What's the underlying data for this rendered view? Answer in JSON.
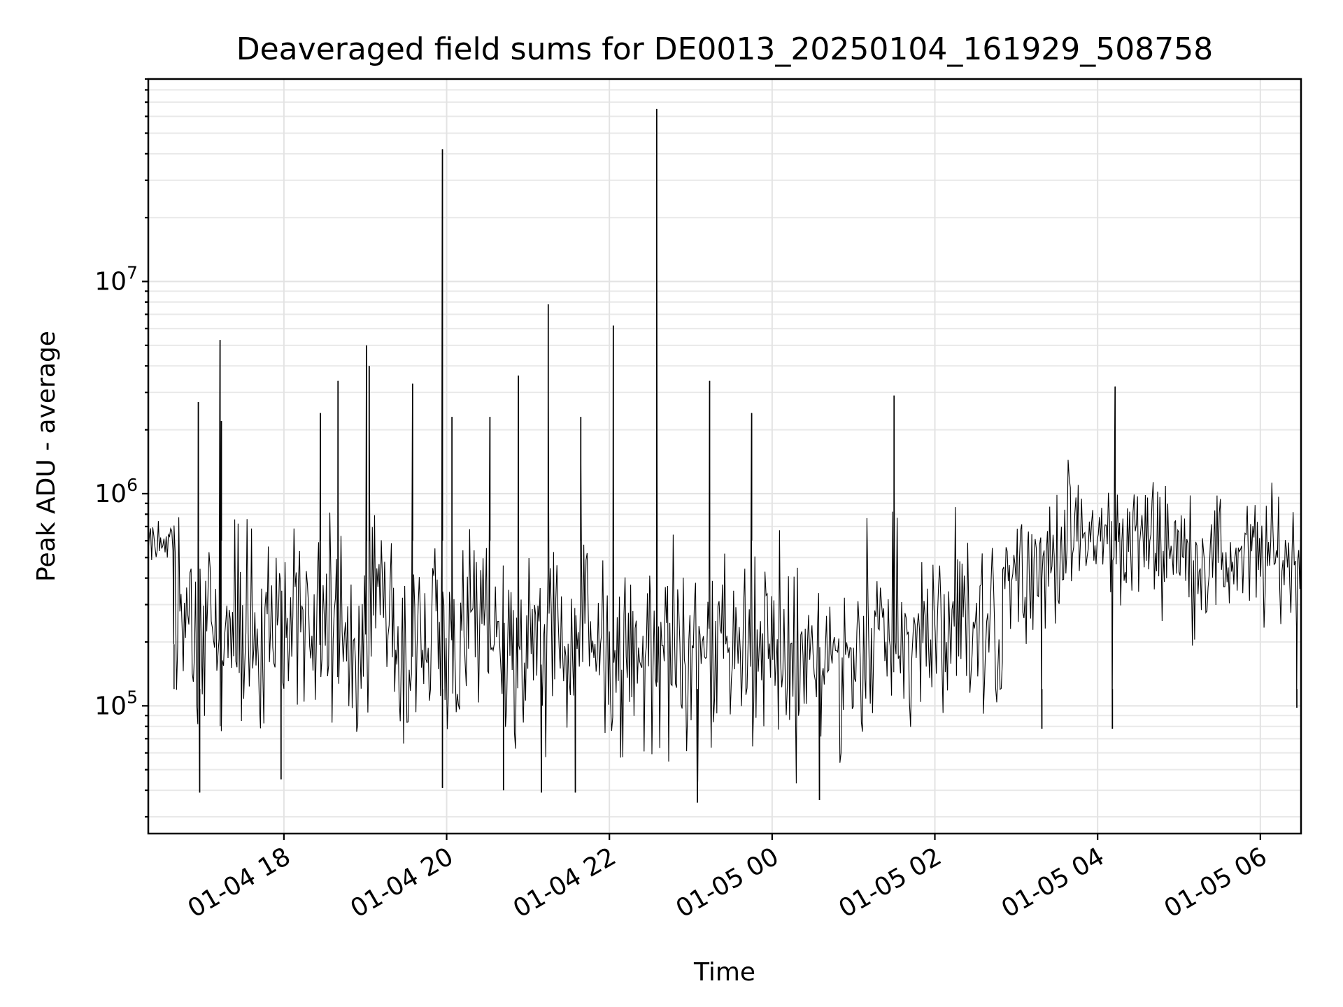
{
  "chart_data": {
    "type": "line",
    "title": "Deaveraged field sums for DE0013_20250104_161929_508758",
    "xlabel": "Time",
    "ylabel": "Peak ADU - average",
    "yscale": "log",
    "grid": true,
    "xlim": [
      "2025-01-04 16:20",
      "2025-01-05 06:30"
    ],
    "ylim": [
      25000,
      90000000
    ],
    "xticks": [
      {
        "value": "2025-01-04 18:00",
        "label": "01-04 18"
      },
      {
        "value": "2025-01-04 20:00",
        "label": "01-04 20"
      },
      {
        "value": "2025-01-04 22:00",
        "label": "01-04 22"
      },
      {
        "value": "2025-01-05 00:00",
        "label": "01-05 00"
      },
      {
        "value": "2025-01-05 02:00",
        "label": "01-05 02"
      },
      {
        "value": "2025-01-05 04:00",
        "label": "01-05 04"
      },
      {
        "value": "2025-01-05 06:00",
        "label": "01-05 06"
      }
    ],
    "yticks": [
      {
        "value": 100000,
        "base": "10",
        "exp": "5"
      },
      {
        "value": 1000000,
        "base": "10",
        "exp": "6"
      },
      {
        "value": 10000000,
        "base": "10",
        "exp": "7"
      }
    ],
    "series": [
      {
        "color": "#000000",
        "segments": [
          {
            "start": "2025-01-04 16:20",
            "end": "2025-01-04 16:40",
            "low": 450000,
            "high": 800000
          },
          {
            "start": "2025-01-04 16:40",
            "end": "2025-01-04 18:00",
            "low": 60000,
            "high": 1000000
          },
          {
            "start": "2025-01-04 18:00",
            "end": "2025-01-04 19:20",
            "low": 65000,
            "high": 900000
          },
          {
            "start": "2025-01-04 19:20",
            "end": "2025-01-04 22:00",
            "low": 50000,
            "high": 750000
          },
          {
            "start": "2025-01-04 22:00",
            "end": "2025-01-05 01:00",
            "low": 45000,
            "high": 700000
          },
          {
            "start": "2025-01-05 01:00",
            "end": "2025-01-05 02:50",
            "low": 55000,
            "high": 800000
          },
          {
            "start": "2025-01-05 02:50",
            "end": "2025-01-05 03:30",
            "low": 200000,
            "high": 1100000
          },
          {
            "start": "2025-01-05 03:30",
            "end": "2025-01-05 05:00",
            "low": 250000,
            "high": 1500000
          },
          {
            "start": "2025-01-05 05:00",
            "end": "2025-01-05 06:30",
            "low": 200000,
            "high": 1200000
          }
        ],
        "spikes": [
          {
            "x": "2025-01-04 16:57",
            "y": 2700000
          },
          {
            "x": "2025-01-04 17:13",
            "y": 5300000
          },
          {
            "x": "2025-01-04 17:14",
            "y": 2200000
          },
          {
            "x": "2025-01-04 18:27",
            "y": 2400000
          },
          {
            "x": "2025-01-04 18:40",
            "y": 3400000
          },
          {
            "x": "2025-01-04 19:01",
            "y": 5000000
          },
          {
            "x": "2025-01-04 19:03",
            "y": 4000000
          },
          {
            "x": "2025-01-04 19:35",
            "y": 3300000
          },
          {
            "x": "2025-01-04 19:57",
            "y": 42000000
          },
          {
            "x": "2025-01-04 20:04",
            "y": 2300000
          },
          {
            "x": "2025-01-04 20:32",
            "y": 2300000
          },
          {
            "x": "2025-01-04 20:53",
            "y": 3600000
          },
          {
            "x": "2025-01-04 21:15",
            "y": 7800000
          },
          {
            "x": "2025-01-04 21:39",
            "y": 2300000
          },
          {
            "x": "2025-01-04 22:03",
            "y": 6200000
          },
          {
            "x": "2025-01-04 22:35",
            "y": 1900000
          },
          {
            "x": "2025-01-04 22:35",
            "y": 65000000
          },
          {
            "x": "2025-01-04 23:14",
            "y": 3400000
          },
          {
            "x": "2025-01-04 23:45",
            "y": 2400000
          },
          {
            "x": "2025-01-05 01:30",
            "y": 2900000
          },
          {
            "x": "2025-01-05 04:13",
            "y": 3200000
          }
        ],
        "dips": [
          {
            "x": "2025-01-04 16:39",
            "y": 195000
          },
          {
            "x": "2025-01-04 16:58",
            "y": 39000
          },
          {
            "x": "2025-01-04 17:58",
            "y": 45000
          },
          {
            "x": "2025-01-04 19:57",
            "y": 41000
          },
          {
            "x": "2025-01-04 20:42",
            "y": 40000
          },
          {
            "x": "2025-01-04 21:10",
            "y": 39000
          },
          {
            "x": "2025-01-04 21:35",
            "y": 39000
          },
          {
            "x": "2025-01-04 23:05",
            "y": 35000
          },
          {
            "x": "2025-01-05 00:35",
            "y": 36000
          },
          {
            "x": "2025-01-05 03:19",
            "y": 78000
          },
          {
            "x": "2025-01-05 04:11",
            "y": 78000
          },
          {
            "x": "2025-01-05 06:27",
            "y": 98000
          }
        ]
      }
    ]
  }
}
